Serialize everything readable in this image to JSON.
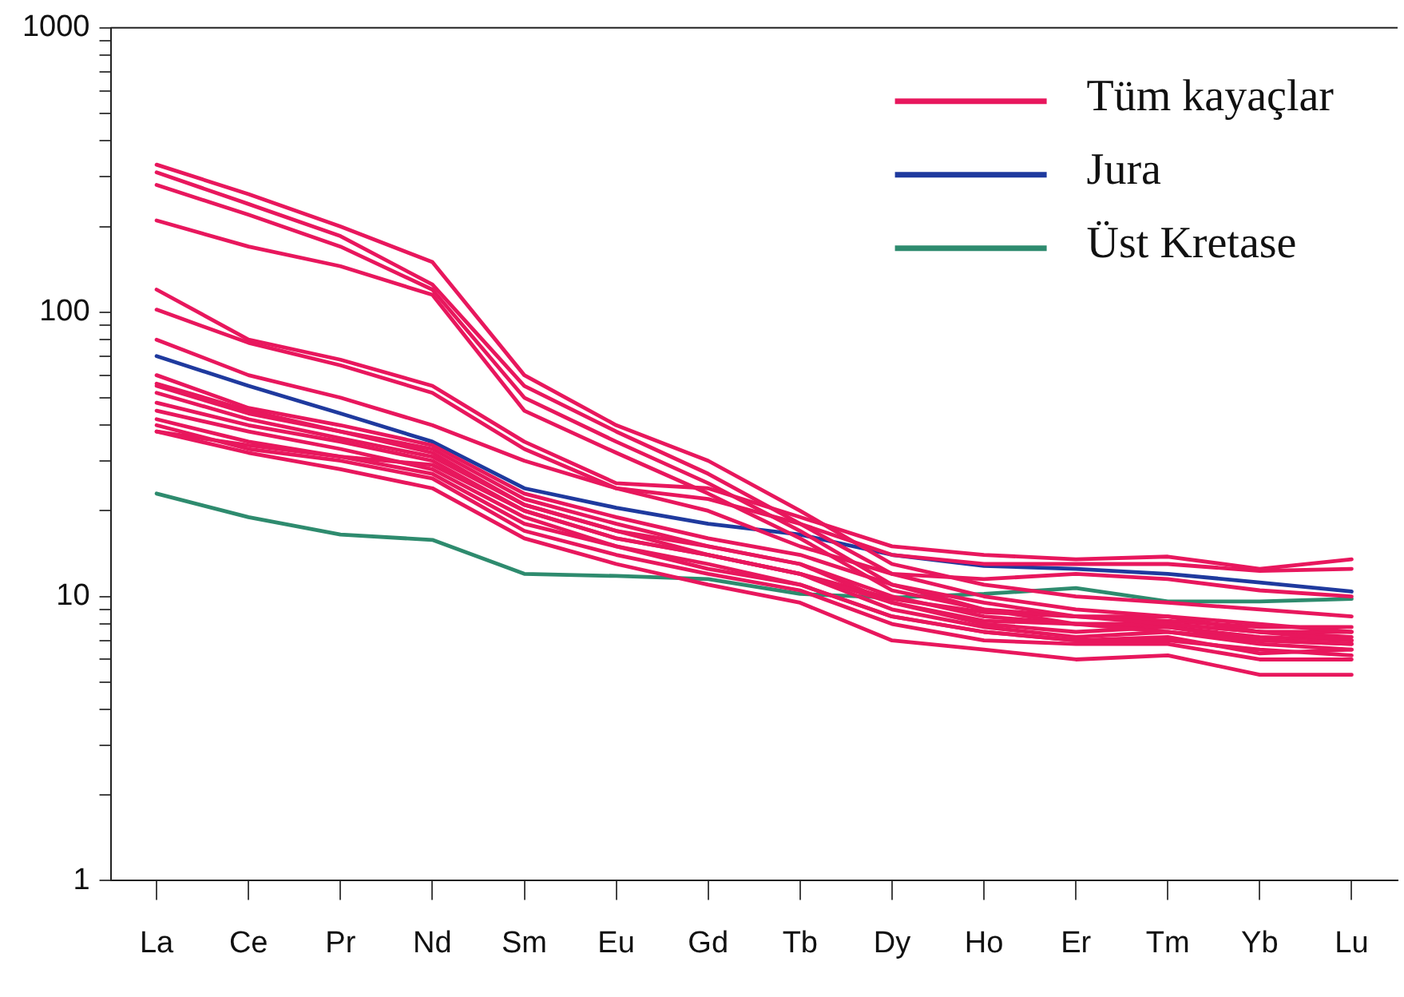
{
  "chart_data": {
    "type": "line",
    "categories": [
      "La",
      "Ce",
      "Pr",
      "Nd",
      "Sm",
      "Eu",
      "Gd",
      "Tb",
      "Dy",
      "Ho",
      "Er",
      "Tm",
      "Yb",
      "Lu"
    ],
    "log": "y",
    "ylim": [
      1,
      1000
    ],
    "yticks": [
      1,
      {
        "value": 2,
        "label": null
      },
      {
        "value": 3,
        "label": null
      },
      {
        "value": 4,
        "label": null
      },
      {
        "value": 5,
        "label": null
      },
      {
        "value": 6,
        "label": null
      },
      {
        "value": 7,
        "label": null
      },
      {
        "value": 8,
        "label": null
      },
      {
        "value": 9,
        "label": null
      },
      10,
      {
        "value": 20,
        "label": null
      },
      {
        "value": 30,
        "label": null
      },
      {
        "value": 40,
        "label": null
      },
      {
        "value": 50,
        "label": null
      },
      {
        "value": 60,
        "label": null
      },
      {
        "value": 70,
        "label": null
      },
      {
        "value": 80,
        "label": null
      },
      {
        "value": 90,
        "label": null
      },
      100,
      {
        "value": 200,
        "label": null
      },
      {
        "value": 300,
        "label": null
      },
      {
        "value": 400,
        "label": null
      },
      {
        "value": 500,
        "label": null
      },
      {
        "value": 600,
        "label": null
      },
      {
        "value": 700,
        "label": null
      },
      {
        "value": 800,
        "label": null
      },
      {
        "value": 900,
        "label": null
      },
      1000
    ],
    "grid": false,
    "legend": "top right",
    "marker": "none",
    "line_style": "solid",
    "series": [
      {
        "name": "Tüm kayaçlar",
        "color": "#e8175d",
        "values": [
          330,
          260,
          200,
          150,
          60,
          40,
          30,
          20,
          13,
          11,
          10,
          9.5,
          9,
          8.5
        ]
      },
      {
        "color": "#e8175d",
        "values": [
          310,
          240,
          185,
          125,
          55,
          38,
          27,
          18,
          12,
          10,
          9,
          8.5,
          8,
          7.5
        ]
      },
      {
        "color": "#e8175d",
        "values": [
          280,
          220,
          170,
          120,
          50,
          35,
          25,
          17,
          11,
          9.5,
          8.5,
          8,
          7.5,
          7
        ]
      },
      {
        "color": "#e8175d",
        "values": [
          210,
          170,
          145,
          115,
          45,
          32,
          23,
          16,
          10.5,
          9,
          8,
          7.5,
          7,
          6.8
        ]
      },
      {
        "color": "#e8175d",
        "values": [
          120,
          80,
          68,
          55,
          35,
          25,
          24,
          19,
          15,
          14,
          13.5,
          13.8,
          12.5,
          13.5
        ]
      },
      {
        "color": "#e8175d",
        "values": [
          102,
          78,
          65,
          52,
          33,
          24,
          22,
          18,
          14,
          13,
          13,
          13,
          12.3,
          12.5
        ]
      },
      {
        "color": "#e8175d",
        "values": [
          80,
          60,
          50,
          40,
          30,
          24,
          20,
          15,
          12,
          11.5,
          12,
          11.5,
          10.5,
          10
        ]
      },
      {
        "color": "#e8175d",
        "values": [
          60,
          46,
          40,
          34,
          23,
          19,
          16,
          14,
          11,
          9,
          8.5,
          8.5,
          7.5,
          7.5
        ]
      },
      {
        "color": "#e8175d",
        "values": [
          56,
          45,
          38,
          33,
          22,
          18,
          15,
          13,
          10,
          8.5,
          8,
          8,
          7.5,
          7.2
        ]
      },
      {
        "color": "#e8175d",
        "values": [
          52,
          42,
          36,
          31,
          21,
          17,
          14,
          12,
          9.5,
          8,
          7.5,
          7.8,
          7,
          6.8
        ]
      },
      {
        "color": "#e8175d",
        "values": [
          48,
          40,
          35,
          30,
          20,
          16,
          14,
          12,
          9,
          7.8,
          7.2,
          7.5,
          6.8,
          6.5
        ]
      },
      {
        "color": "#e8175d",
        "values": [
          45,
          38,
          33,
          28,
          19,
          15,
          13,
          11,
          8.5,
          7.5,
          7,
          7,
          6.5,
          6.2
        ]
      },
      {
        "color": "#e8175d",
        "values": [
          42,
          35,
          31,
          27,
          18,
          15,
          12.5,
          11,
          8.5,
          7.5,
          7,
          7.2,
          6.3,
          6.5
        ]
      },
      {
        "color": "#e8175d",
        "values": [
          40,
          33,
          30,
          26,
          17,
          14,
          12,
          10.5,
          8,
          7,
          6.8,
          6.8,
          6,
          6
        ]
      },
      {
        "color": "#e8175d",
        "values": [
          38,
          32,
          28,
          24,
          16,
          13,
          11,
          9.5,
          7,
          6.5,
          6,
          6.2,
          5.3,
          5.3
        ]
      },
      {
        "color": "#e8175d",
        "values": [
          55,
          44,
          38,
          32,
          21,
          17,
          15,
          13,
          9.5,
          8.2,
          8,
          7.8,
          7.2,
          7
        ]
      },
      {
        "color": "#e8175d",
        "values": [
          38,
          34,
          31,
          29,
          20,
          16,
          14,
          12,
          9.8,
          8.8,
          8.5,
          8.2,
          7.8,
          7.8
        ]
      },
      {
        "name": "Jura",
        "color": "#1f3a9e",
        "values": [
          70,
          55,
          44,
          35,
          24,
          20.5,
          18,
          16.5,
          14,
          12.8,
          12.5,
          12,
          11.2,
          10.4
        ]
      },
      {
        "name": "Üst Kretase",
        "color": "#2e8b6e",
        "values": [
          23,
          19,
          16.5,
          15.8,
          12,
          11.8,
          11.5,
          10.2,
          9.9,
          10.2,
          10.7,
          9.6,
          9.6,
          9.8
        ]
      }
    ]
  }
}
